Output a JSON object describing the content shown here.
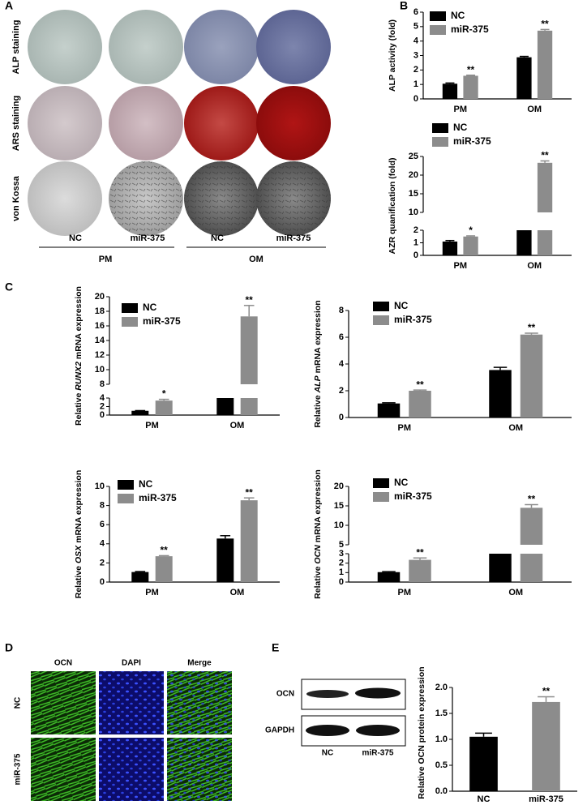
{
  "panel_labels": [
    "A",
    "B",
    "C",
    "D",
    "E"
  ],
  "panel_a": {
    "row_labels": [
      "ALP staining",
      "ARS staining",
      "von Kossa"
    ],
    "column_labels": [
      "NC",
      "miR-375",
      "NC",
      "miR-375"
    ],
    "group_labels": [
      "PM",
      "OM"
    ]
  },
  "chart_data": [
    {
      "type": "bar",
      "ylabel": "ALP activity (fold)",
      "categories": [
        "PM",
        "OM"
      ],
      "ylim": [
        0,
        6
      ],
      "yticks": [
        0,
        1,
        2,
        3,
        4,
        5,
        6
      ],
      "legend": "upper left",
      "series": [
        {
          "name": "NC",
          "color": "#000000",
          "values": [
            1.05,
            2.88
          ],
          "errors": [
            0.05,
            0.06
          ]
        },
        {
          "name": "miR-375",
          "color": "#8c8c8c",
          "values": [
            1.6,
            4.72
          ],
          "errors": [
            0.04,
            0.08
          ],
          "labels": [
            "**",
            "**"
          ]
        }
      ]
    },
    {
      "type": "bar",
      "ylabel": "AZR quanification (fold)",
      "categories": [
        "PM",
        "OM"
      ],
      "ylim": [
        0,
        25
      ],
      "ybreak": [
        2,
        10
      ],
      "yticks": [
        0,
        1,
        2,
        10,
        15,
        20,
        25
      ],
      "legend": "upper left",
      "series": [
        {
          "name": "NC",
          "color": "#000000",
          "values": [
            1.1,
            2
          ],
          "errors": [
            0.08,
            0
          ]
        },
        {
          "name": "miR-375",
          "color": "#8c8c8c",
          "values": [
            1.5,
            23.3
          ],
          "errors": [
            0.05,
            0.5
          ],
          "labels": [
            "*",
            "**"
          ]
        }
      ]
    },
    {
      "type": "bar",
      "ylabel": [
        "Relative",
        "RUNX2",
        "mRNA expression"
      ],
      "categories": [
        "PM",
        "OM"
      ],
      "ylim": [
        0,
        20
      ],
      "ybreak": [
        4,
        8
      ],
      "yticks": [
        0,
        2,
        4,
        8,
        10,
        12,
        14,
        16,
        18,
        20
      ],
      "legend": "upper left",
      "series": [
        {
          "name": "NC",
          "color": "#000000",
          "values": [
            1.0,
            4
          ],
          "errors": [
            0.05,
            0
          ]
        },
        {
          "name": "miR-375",
          "color": "#8c8c8c",
          "values": [
            3.4,
            17.3
          ],
          "errors": [
            0.3,
            1.5
          ],
          "labels": [
            "*",
            "**"
          ]
        }
      ]
    },
    {
      "type": "bar",
      "ylabel": [
        "Relative",
        "ALP",
        "mRNA expression"
      ],
      "categories": [
        "PM",
        "OM"
      ],
      "ylim": [
        0,
        8
      ],
      "yticks": [
        0,
        2,
        4,
        6,
        8
      ],
      "legend": "upper left",
      "series": [
        {
          "name": "NC",
          "color": "#000000",
          "values": [
            1.05,
            3.55
          ],
          "errors": [
            0.05,
            0.2
          ]
        },
        {
          "name": "miR-375",
          "color": "#8c8c8c",
          "values": [
            2.0,
            6.2
          ],
          "errors": [
            0.05,
            0.1
          ],
          "labels": [
            "**",
            "**"
          ]
        }
      ]
    },
    {
      "type": "bar",
      "ylabel": [
        "Relative",
        "OSX",
        "mRNA expression"
      ],
      "categories": [
        "PM",
        "OM"
      ],
      "ylim": [
        0,
        10
      ],
      "yticks": [
        0,
        2,
        4,
        6,
        8,
        10
      ],
      "legend": "upper left",
      "series": [
        {
          "name": "NC",
          "color": "#000000",
          "values": [
            1.05,
            4.55
          ],
          "errors": [
            0.05,
            0.3
          ]
        },
        {
          "name": "miR-375",
          "color": "#8c8c8c",
          "values": [
            2.7,
            8.55
          ],
          "errors": [
            0.06,
            0.25
          ],
          "labels": [
            "**",
            "**"
          ]
        }
      ]
    },
    {
      "type": "bar",
      "ylabel": [
        "Relative",
        "OCN",
        "mRNA expression"
      ],
      "categories": [
        "PM",
        "OM"
      ],
      "ylim": [
        0,
        20
      ],
      "ybreak": [
        3,
        5
      ],
      "yticks": [
        0,
        1,
        2,
        3,
        5,
        10,
        15,
        20
      ],
      "legend": "upper left",
      "series": [
        {
          "name": "NC",
          "color": "#000000",
          "values": [
            1.05,
            3
          ],
          "errors": [
            0.05,
            0
          ]
        },
        {
          "name": "miR-375",
          "color": "#8c8c8c",
          "values": [
            2.35,
            14.5
          ],
          "errors": [
            0.2,
            0.8
          ],
          "labels": [
            "**",
            "**"
          ]
        }
      ]
    },
    {
      "type": "bar",
      "ylabel": "Relative OCN protein expression",
      "categories": [
        "NC",
        "miR-375"
      ],
      "ylim": [
        0,
        2
      ],
      "yticks": [
        {
          "value": 0,
          "label": "0.0"
        },
        {
          "value": 0.5,
          "label": "0.5"
        },
        {
          "value": 1,
          "label": "1.0"
        },
        {
          "value": 1.5,
          "label": "1.5"
        },
        {
          "value": 2,
          "label": "2.0"
        }
      ],
      "values": [
        1.05,
        1.72
      ],
      "errors": [
        0.07,
        0.1
      ],
      "colors": [
        "#000000",
        "#8c8c8c"
      ],
      "labels": [
        null,
        "**"
      ]
    }
  ],
  "panel_d": {
    "column_labels": [
      "OCN",
      "DAPI",
      "Merge"
    ],
    "row_labels": [
      "NC",
      "miR-375"
    ]
  },
  "panel_e_blot": {
    "row_labels": [
      "OCN",
      "GAPDH"
    ],
    "column_labels": [
      "NC",
      "miR-375"
    ]
  }
}
